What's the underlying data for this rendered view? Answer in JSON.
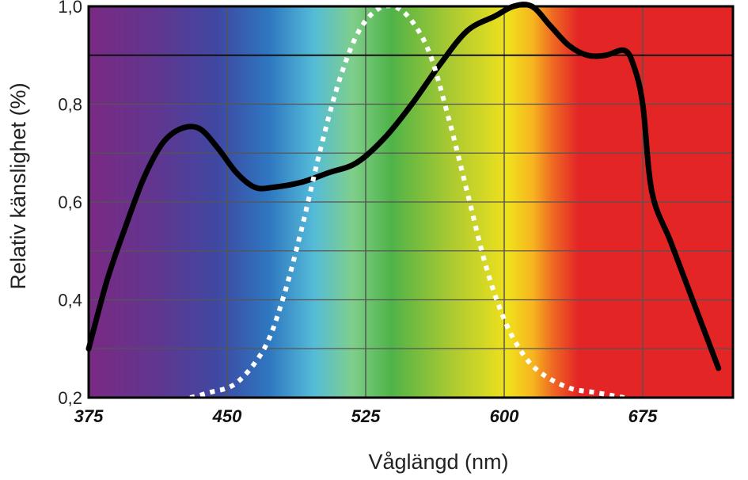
{
  "chart_data": {
    "type": "line",
    "title": "",
    "xlabel": "Våglängd (nm)",
    "ylabel": "Relativ känslighet (%)",
    "xlim": [
      375,
      722
    ],
    "ylim": [
      0.2,
      1.0
    ],
    "x_ticks": [
      "375",
      "450",
      "525",
      "600",
      "675"
    ],
    "x_tick_values": [
      375,
      450,
      525,
      600,
      675
    ],
    "y_ticks": [
      "0,2",
      "0,4",
      "0,6",
      "0,8",
      "1,0"
    ],
    "y_tick_values": [
      0.2,
      0.4,
      0.6,
      0.8,
      1.0
    ],
    "grid": true,
    "background": "visible light spectrum (violet to red)",
    "series": [
      {
        "style": "solid",
        "color": "#000000",
        "points": [
          [
            375,
            0.3
          ],
          [
            385,
            0.44
          ],
          [
            395,
            0.55
          ],
          [
            405,
            0.65
          ],
          [
            415,
            0.72
          ],
          [
            425,
            0.75
          ],
          [
            435,
            0.75
          ],
          [
            445,
            0.71
          ],
          [
            455,
            0.66
          ],
          [
            465,
            0.63
          ],
          [
            475,
            0.63
          ],
          [
            490,
            0.64
          ],
          [
            505,
            0.66
          ],
          [
            520,
            0.68
          ],
          [
            535,
            0.73
          ],
          [
            550,
            0.8
          ],
          [
            565,
            0.88
          ],
          [
            580,
            0.95
          ],
          [
            595,
            0.98
          ],
          [
            605,
            1.0
          ],
          [
            615,
            1.0
          ],
          [
            625,
            0.96
          ],
          [
            635,
            0.92
          ],
          [
            645,
            0.9
          ],
          [
            655,
            0.9
          ],
          [
            665,
            0.91
          ],
          [
            670,
            0.88
          ],
          [
            675,
            0.8
          ],
          [
            680,
            0.62
          ],
          [
            690,
            0.52
          ],
          [
            700,
            0.42
          ],
          [
            710,
            0.32
          ],
          [
            716,
            0.26
          ]
        ]
      },
      {
        "style": "dotted",
        "color": "#ffffff",
        "points": [
          [
            430,
            0.2
          ],
          [
            440,
            0.21
          ],
          [
            455,
            0.23
          ],
          [
            470,
            0.3
          ],
          [
            480,
            0.4
          ],
          [
            490,
            0.54
          ],
          [
            500,
            0.7
          ],
          [
            510,
            0.84
          ],
          [
            520,
            0.94
          ],
          [
            530,
            0.99
          ],
          [
            540,
            1.0
          ],
          [
            550,
            0.97
          ],
          [
            560,
            0.9
          ],
          [
            570,
            0.77
          ],
          [
            580,
            0.62
          ],
          [
            590,
            0.47
          ],
          [
            600,
            0.36
          ],
          [
            610,
            0.29
          ],
          [
            620,
            0.25
          ],
          [
            635,
            0.22
          ],
          [
            650,
            0.21
          ],
          [
            665,
            0.2
          ]
        ]
      }
    ],
    "colors": {
      "spectrum": [
        "#7a2a83",
        "#5a3a95",
        "#3a4ea8",
        "#2e77c0",
        "#55bcd8",
        "#7fcf8a",
        "#4fb348",
        "#a9c932",
        "#f0e11c",
        "#f6b41f",
        "#ee6a22",
        "#e42526"
      ],
      "grid": "#555555"
    }
  }
}
